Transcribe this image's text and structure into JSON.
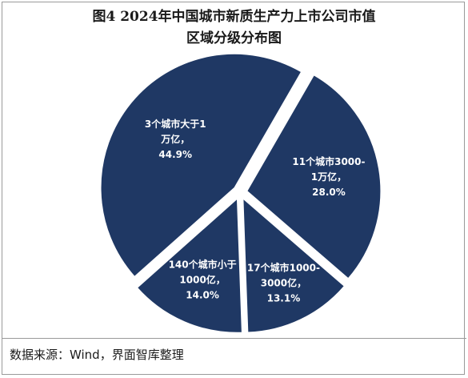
{
  "title": {
    "line1": "图4 2024年中国城市新质生产力上市公司市值",
    "line2": "区域分级分布图"
  },
  "source": "数据来源：Wind，界面智库整理",
  "colors": {
    "slice": "#1f3864",
    "edge": "#ffffff"
  },
  "chart_data": {
    "type": "pie",
    "title": "图4 2024年中国城市新质生产力上市公司市值区域分级分布图",
    "slices": [
      {
        "label": [
          "11个城市3000-",
          "1万亿，",
          "28.0%"
        ],
        "value": 28.0
      },
      {
        "label": [
          "17个城市1000-",
          "3000亿，",
          "13.1%"
        ],
        "value": 13.1
      },
      {
        "label": [
          "140个城市小于",
          "1000亿，",
          "14.0%"
        ],
        "value": 14.0
      },
      {
        "label": [
          "3个城市大于1",
          "万亿，",
          "44.9%"
        ],
        "value": 44.9
      }
    ]
  }
}
